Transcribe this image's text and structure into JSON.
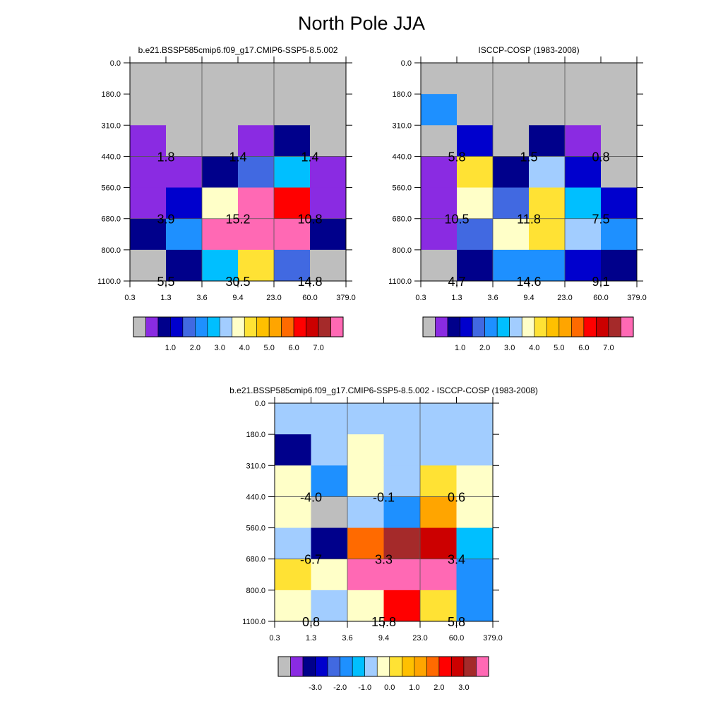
{
  "title": "North Pole JJA",
  "colors": {
    "fill": [
      "#bebebe",
      "#8a2be2",
      "#00008b",
      "#0000cd",
      "#4169e1",
      "#1e90ff",
      "#00bfff",
      "#a2cdff",
      "#ffffc8",
      "#ffe234",
      "#ffc000",
      "#ffa500",
      "#ff6a00",
      "#ff0000",
      "#cc0000",
      "#a52a2a",
      "#ff69b4"
    ]
  },
  "chart_data": [
    {
      "type": "heatmap",
      "title": "b.e21.BSSP585cmip6.f09_g17.CMIP6-SSP5-8.5.002",
      "x_edges": [
        "0.3",
        "1.3",
        "3.6",
        "9.4",
        "23.0",
        "60.0",
        "379.0"
      ],
      "y_edges": [
        "0.0",
        "180.0",
        "310.0",
        "440.0",
        "560.0",
        "680.0",
        "800.0",
        "1100.0"
      ],
      "cells": [
        [
          0,
          0,
          0,
          0,
          0,
          0
        ],
        [
          0,
          0,
          0,
          0,
          0,
          0
        ],
        [
          1,
          0,
          0,
          1,
          2,
          0
        ],
        [
          1,
          1,
          2,
          4,
          6,
          1
        ],
        [
          1,
          3,
          8,
          16,
          13,
          1
        ],
        [
          2,
          5,
          16,
          16,
          16,
          2
        ],
        [
          0,
          2,
          6,
          9,
          4,
          0
        ]
      ],
      "annotations": [
        {
          "row": 1,
          "col": 0,
          "text": "1.8"
        },
        {
          "row": 1,
          "col": 1,
          "text": "1.4"
        },
        {
          "row": 1,
          "col": 2,
          "text": "1.4"
        },
        {
          "row": 2,
          "col": 0,
          "text": "3.9"
        },
        {
          "row": 2,
          "col": 1,
          "text": "15.2"
        },
        {
          "row": 2,
          "col": 2,
          "text": "10.8"
        },
        {
          "row": 3,
          "col": 0,
          "text": "5.5"
        },
        {
          "row": 3,
          "col": 1,
          "text": "30.5"
        },
        {
          "row": 3,
          "col": 2,
          "text": "14.8"
        }
      ],
      "colorbar_labels": [
        "1.0",
        "2.0",
        "3.0",
        "4.0",
        "5.0",
        "6.0",
        "7.0"
      ]
    },
    {
      "type": "heatmap",
      "title": "ISCCP-COSP (1983-2008)",
      "x_edges": [
        "0.3",
        "1.3",
        "3.6",
        "9.4",
        "23.0",
        "60.0",
        "379.0"
      ],
      "y_edges": [
        "0.0",
        "180.0",
        "310.0",
        "440.0",
        "560.0",
        "680.0",
        "800.0",
        "1100.0"
      ],
      "cells": [
        [
          0,
          0,
          0,
          0,
          0,
          0
        ],
        [
          5,
          0,
          0,
          0,
          0,
          0
        ],
        [
          0,
          3,
          0,
          2,
          1,
          0
        ],
        [
          1,
          9,
          2,
          7,
          3,
          0
        ],
        [
          1,
          8,
          4,
          9,
          6,
          3
        ],
        [
          1,
          4,
          8,
          9,
          7,
          5
        ],
        [
          0,
          2,
          5,
          5,
          3,
          2
        ]
      ],
      "annotations": [
        {
          "row": 1,
          "col": 0,
          "text": "5.8"
        },
        {
          "row": 1,
          "col": 1,
          "text": "1.5"
        },
        {
          "row": 1,
          "col": 2,
          "text": "0.8"
        },
        {
          "row": 2,
          "col": 0,
          "text": "10.5"
        },
        {
          "row": 2,
          "col": 1,
          "text": "11.8"
        },
        {
          "row": 2,
          "col": 2,
          "text": "7.5"
        },
        {
          "row": 3,
          "col": 0,
          "text": "4.7"
        },
        {
          "row": 3,
          "col": 1,
          "text": "14.6"
        },
        {
          "row": 3,
          "col": 2,
          "text": "9.1"
        }
      ],
      "colorbar_labels": [
        "1.0",
        "2.0",
        "3.0",
        "4.0",
        "5.0",
        "6.0",
        "7.0"
      ]
    },
    {
      "type": "heatmap",
      "title": "b.e21.BSSP585cmip6.f09_g17.CMIP6-SSP5-8.5.002 - ISCCP-COSP (1983-2008)",
      "x_edges": [
        "0.3",
        "1.3",
        "3.6",
        "9.4",
        "23.0",
        "60.0",
        "379.0"
      ],
      "y_edges": [
        "0.0",
        "180.0",
        "310.0",
        "440.0",
        "560.0",
        "680.0",
        "800.0",
        "1100.0"
      ],
      "cells": [
        [
          7,
          7,
          7,
          7,
          7,
          7
        ],
        [
          2,
          7,
          8,
          7,
          7,
          7
        ],
        [
          8,
          5,
          8,
          7,
          9,
          8
        ],
        [
          8,
          0,
          7,
          5,
          11,
          8
        ],
        [
          7,
          2,
          12,
          15,
          14,
          6
        ],
        [
          9,
          8,
          16,
          16,
          16,
          5
        ],
        [
          8,
          7,
          8,
          13,
          9,
          5
        ]
      ],
      "annotations": [
        {
          "row": 1,
          "col": 0,
          "text": "-4.0"
        },
        {
          "row": 1,
          "col": 1,
          "text": "-0.1"
        },
        {
          "row": 1,
          "col": 2,
          "text": "0.6"
        },
        {
          "row": 2,
          "col": 0,
          "text": "-6.7"
        },
        {
          "row": 2,
          "col": 1,
          "text": "3.3"
        },
        {
          "row": 2,
          "col": 2,
          "text": "3.4"
        },
        {
          "row": 3,
          "col": 0,
          "text": "0.8"
        },
        {
          "row": 3,
          "col": 1,
          "text": "15.8"
        },
        {
          "row": 3,
          "col": 2,
          "text": "5.8"
        }
      ],
      "colorbar_labels": [
        "-3.0",
        "-2.0",
        "-1.0",
        "0.0",
        "1.0",
        "2.0",
        "3.0"
      ]
    }
  ]
}
